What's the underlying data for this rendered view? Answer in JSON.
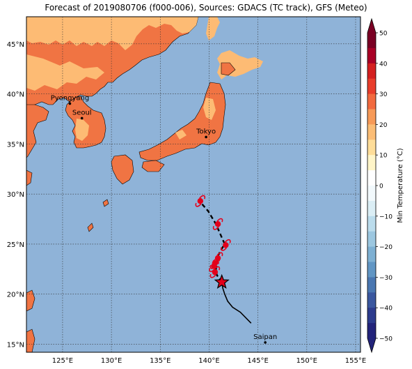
{
  "title": "Forecast of 2019080706 (f000-006), Sources: GDACS (TC track), GFS (Meteo)",
  "colors": {
    "ocean": "#8fb3d8",
    "land_warm": "#f07443",
    "land_mild": "#fdbb74",
    "track_past": "#000000",
    "track_forecast": "#000000",
    "storm_symbol": "#e3001b"
  },
  "map": {
    "lon_range": [
      121.3,
      155.5
    ],
    "lat_range": [
      14.2,
      47.7
    ],
    "lon_ticks": [
      {
        "value": 125,
        "label": "125°E"
      },
      {
        "value": 130,
        "label": "130°E"
      },
      {
        "value": 135,
        "label": "135°E"
      },
      {
        "value": 140,
        "label": "140°E"
      },
      {
        "value": 145,
        "label": "145°E"
      },
      {
        "value": 150,
        "label": "150°E"
      },
      {
        "value": 155,
        "label": "155°E"
      }
    ],
    "lat_ticks": [
      {
        "value": 15,
        "label": "15°N"
      },
      {
        "value": 20,
        "label": "20°N"
      },
      {
        "value": 25,
        "label": "25°N"
      },
      {
        "value": 30,
        "label": "30°N"
      },
      {
        "value": 35,
        "label": "35°N"
      },
      {
        "value": 40,
        "label": "40°N"
      },
      {
        "value": 45,
        "label": "45°N"
      }
    ],
    "gridlines": true
  },
  "cities": [
    {
      "name": "Pyongyang",
      "lon": 125.75,
      "lat": 39.03
    },
    {
      "name": "Seoul",
      "lon": 126.98,
      "lat": 37.57
    },
    {
      "name": "Tokyo",
      "lon": 139.69,
      "lat": 35.69
    },
    {
      "name": "Saipan",
      "lon": 145.75,
      "lat": 15.18
    }
  ],
  "track_past": [
    [
      144.3,
      17.1
    ],
    [
      143.2,
      18.2
    ],
    [
      142.4,
      18.7
    ],
    [
      141.9,
      19.3
    ],
    [
      141.6,
      20.0
    ],
    [
      141.4,
      20.6
    ],
    [
      141.3,
      21.2
    ]
  ],
  "track_forecast": [
    [
      141.3,
      21.2
    ],
    [
      140.8,
      21.9
    ],
    [
      140.7,
      22.5
    ],
    [
      140.8,
      23.1
    ],
    [
      140.9,
      23.8
    ],
    [
      141.2,
      24.4
    ],
    [
      141.6,
      25.0
    ],
    [
      141.1,
      26.1
    ],
    [
      140.7,
      27.0
    ],
    [
      139.9,
      28.3
    ],
    [
      139.1,
      29.2
    ]
  ],
  "storm_positions": [
    [
      140.6,
      22.2
    ],
    [
      140.5,
      22.8
    ],
    [
      140.6,
      23.1
    ],
    [
      140.9,
      23.6
    ],
    [
      141.7,
      24.9
    ],
    [
      140.9,
      27.0
    ],
    [
      139.1,
      29.3
    ]
  ],
  "current_position": [
    141.3,
    21.2
  ],
  "colorbar": {
    "label": "Min Temperature (°C)",
    "tick_values": [
      50,
      40,
      30,
      20,
      10,
      0,
      -10,
      -20,
      -30,
      -40,
      -50
    ],
    "tick_labels": [
      "50",
      "40",
      "30",
      "20",
      "10",
      "0",
      "−10",
      "−20",
      "−30",
      "−40",
      "−50"
    ],
    "levels": [
      {
        "from": 45,
        "to": 50,
        "color": "#7a0024"
      },
      {
        "from": 40,
        "to": 45,
        "color": "#a90026"
      },
      {
        "from": 35,
        "to": 40,
        "color": "#d42020"
      },
      {
        "from": 30,
        "to": 35,
        "color": "#e83d2b"
      },
      {
        "from": 25,
        "to": 30,
        "color": "#f26a3f"
      },
      {
        "from": 20,
        "to": 25,
        "color": "#f79a58"
      },
      {
        "from": 15,
        "to": 20,
        "color": "#fbbd76"
      },
      {
        "from": 10,
        "to": 15,
        "color": "#fedd99"
      },
      {
        "from": 5,
        "to": 10,
        "color": "#fff5c8"
      },
      {
        "from": 0,
        "to": 5,
        "color": "#ffffff"
      },
      {
        "from": -5,
        "to": 0,
        "color": "#f2f9fc"
      },
      {
        "from": -10,
        "to": -5,
        "color": "#dbeef5"
      },
      {
        "from": -15,
        "to": -10,
        "color": "#bbdcec"
      },
      {
        "from": -20,
        "to": -15,
        "color": "#9cc7e0"
      },
      {
        "from": -25,
        "to": -20,
        "color": "#7eb0d3"
      },
      {
        "from": -30,
        "to": -25,
        "color": "#6196c4"
      },
      {
        "from": -35,
        "to": -30,
        "color": "#4a77b1"
      },
      {
        "from": -40,
        "to": -35,
        "color": "#3a579f"
      },
      {
        "from": -45,
        "to": -40,
        "color": "#2c3b8d"
      },
      {
        "from": -50,
        "to": -45,
        "color": "#22237a"
      }
    ],
    "extend": "both"
  }
}
